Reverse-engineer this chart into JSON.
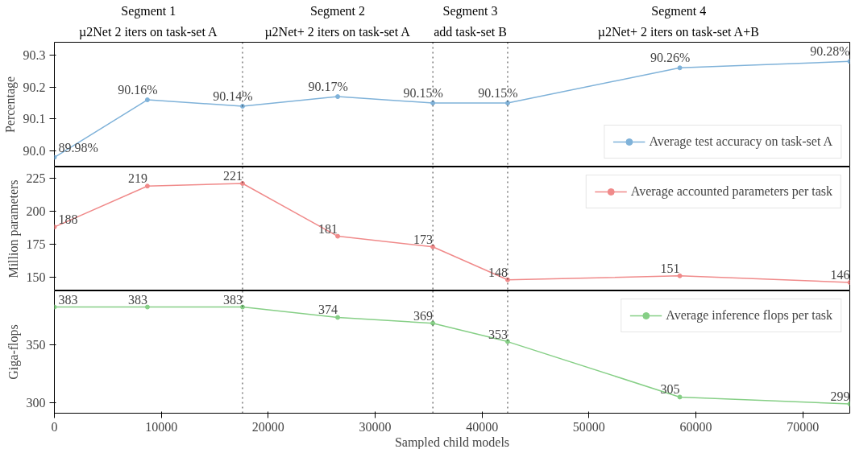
{
  "chart_data": [
    {
      "type": "line",
      "ylabel": "Percentage",
      "x": [
        0,
        8700,
        17600,
        26500,
        35400,
        42400,
        58500,
        74400
      ],
      "series": [
        {
          "name": "Average test accuracy on task-set A",
          "color": "#7fb2d9",
          "values": [
            89.98,
            90.16,
            90.14,
            90.17,
            90.15,
            90.15,
            90.26,
            90.28
          ],
          "value_labels": [
            "89.98%",
            "90.16%",
            "90.14%",
            "90.17%",
            "90.15%",
            "90.15%",
            "90.26%",
            "90.28%"
          ]
        }
      ],
      "xlim": [
        0,
        74400
      ],
      "ylim": [
        89.95,
        90.34
      ],
      "yticks": [
        {
          "value": 90,
          "label": "90.0"
        },
        90.1,
        90.2,
        90.3
      ],
      "tick_labels": "y",
      "legend": "bottom right",
      "grid": false,
      "marker": "circle",
      "line_style": "solid",
      "ref_lines": [
        {
          "axis": "x",
          "value": 17600,
          "line_style": "dotted"
        },
        {
          "axis": "x",
          "value": 35400,
          "line_style": "dotted"
        },
        {
          "axis": "x",
          "value": 42400,
          "line_style": "dotted"
        }
      ],
      "annotations": [
        "Segment 1\nµ2Net 2 iters on task-set A",
        "Segment 2\nµ2Net+ 2 iters on task-set A",
        "Segment 3\nadd task-set B",
        "Segment 4\nµ2Net+ 2 iters on task-set A+B"
      ]
    },
    {
      "type": "line",
      "ylabel": "Million parameters",
      "x": [
        0,
        8700,
        17600,
        26500,
        35400,
        42400,
        58500,
        74400
      ],
      "series": [
        {
          "name": "Average accounted parameters per task",
          "color": "#f08a8a",
          "values": [
            188,
            219,
            221,
            181,
            173,
            148,
            151,
            146
          ]
        }
      ],
      "data_labels": true,
      "xlim": [
        0,
        74400
      ],
      "ylim": [
        139.6,
        233.5
      ],
      "yticks": [
        150,
        175,
        200,
        225
      ],
      "tick_labels": "y",
      "legend": "top right",
      "grid": false,
      "marker": "circle",
      "line_style": "solid",
      "ref_lines": [
        {
          "axis": "x",
          "value": 17600,
          "line_style": "dotted"
        },
        {
          "axis": "x",
          "value": 35400,
          "line_style": "dotted"
        },
        {
          "axis": "x",
          "value": 42400,
          "line_style": "dotted"
        }
      ]
    },
    {
      "type": "line",
      "xlabel": "Sampled child models",
      "ylabel": "Giga-flops",
      "x": [
        0,
        8700,
        17600,
        26500,
        35400,
        42400,
        58500,
        74400
      ],
      "series": [
        {
          "name": "Average inference flops per task",
          "color": "#86cf86",
          "values": [
            383,
            383,
            383,
            374,
            369,
            353,
            305,
            299
          ]
        }
      ],
      "data_labels": true,
      "xlim": [
        0,
        74400
      ],
      "xticks": [
        0,
        10000,
        20000,
        30000,
        40000,
        50000,
        60000,
        70000
      ],
      "ylim": [
        291,
        397
      ],
      "yticks": [
        300,
        350
      ],
      "legend": "top right",
      "grid": false,
      "marker": "circle",
      "line_style": "solid",
      "ref_lines": [
        {
          "axis": "x",
          "value": 17600,
          "line_style": "dotted"
        },
        {
          "axis": "x",
          "value": 35400,
          "line_style": "dotted"
        },
        {
          "axis": "x",
          "value": 42400,
          "line_style": "dotted"
        }
      ]
    }
  ]
}
